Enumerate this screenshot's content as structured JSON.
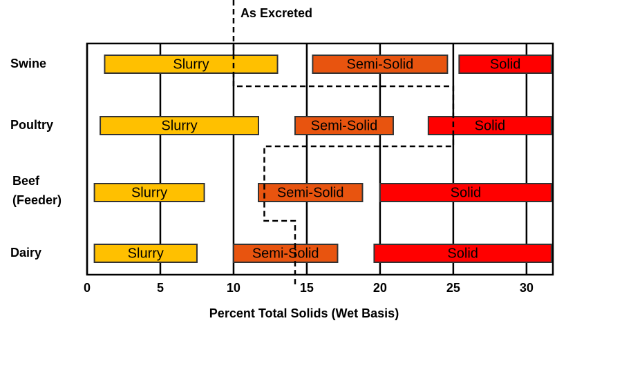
{
  "chart_data": {
    "type": "range-bar",
    "categories": [
      "Swine",
      "Poultry",
      "Beef",
      "Dairy"
    ],
    "category_sublabels": [
      null,
      null,
      "(Feeder)",
      null
    ],
    "series": [
      {
        "name": "Slurry",
        "color": "#ffc000",
        "values": [
          [
            1.2,
            13
          ],
          [
            0.9,
            11.7
          ],
          [
            0.5,
            8
          ],
          [
            0.5,
            7.5
          ]
        ]
      },
      {
        "name": "Semi-Solid",
        "color": "#e8540f",
        "values": [
          [
            15.4,
            24.6
          ],
          [
            14.2,
            20.9
          ],
          [
            11.7,
            18.8
          ],
          [
            10,
            17.1
          ]
        ]
      },
      {
        "name": "Solid",
        "color": "#ff0000",
        "values": [
          [
            25.4,
            31.7
          ],
          [
            23.3,
            31.7
          ],
          [
            20,
            31.7
          ],
          [
            19.6,
            31.7
          ]
        ]
      }
    ],
    "as_excreted": {
      "label": "As Excreted",
      "x": [
        10,
        10,
        25,
        25,
        12.1,
        12.1,
        14.2,
        14.2
      ]
    },
    "xlabel": "Percent Total Solids (Wet Basis)",
    "xlim": [
      0,
      31.8
    ],
    "xticks": [
      0,
      5,
      10,
      15,
      20,
      25,
      30
    ],
    "grid": true
  }
}
